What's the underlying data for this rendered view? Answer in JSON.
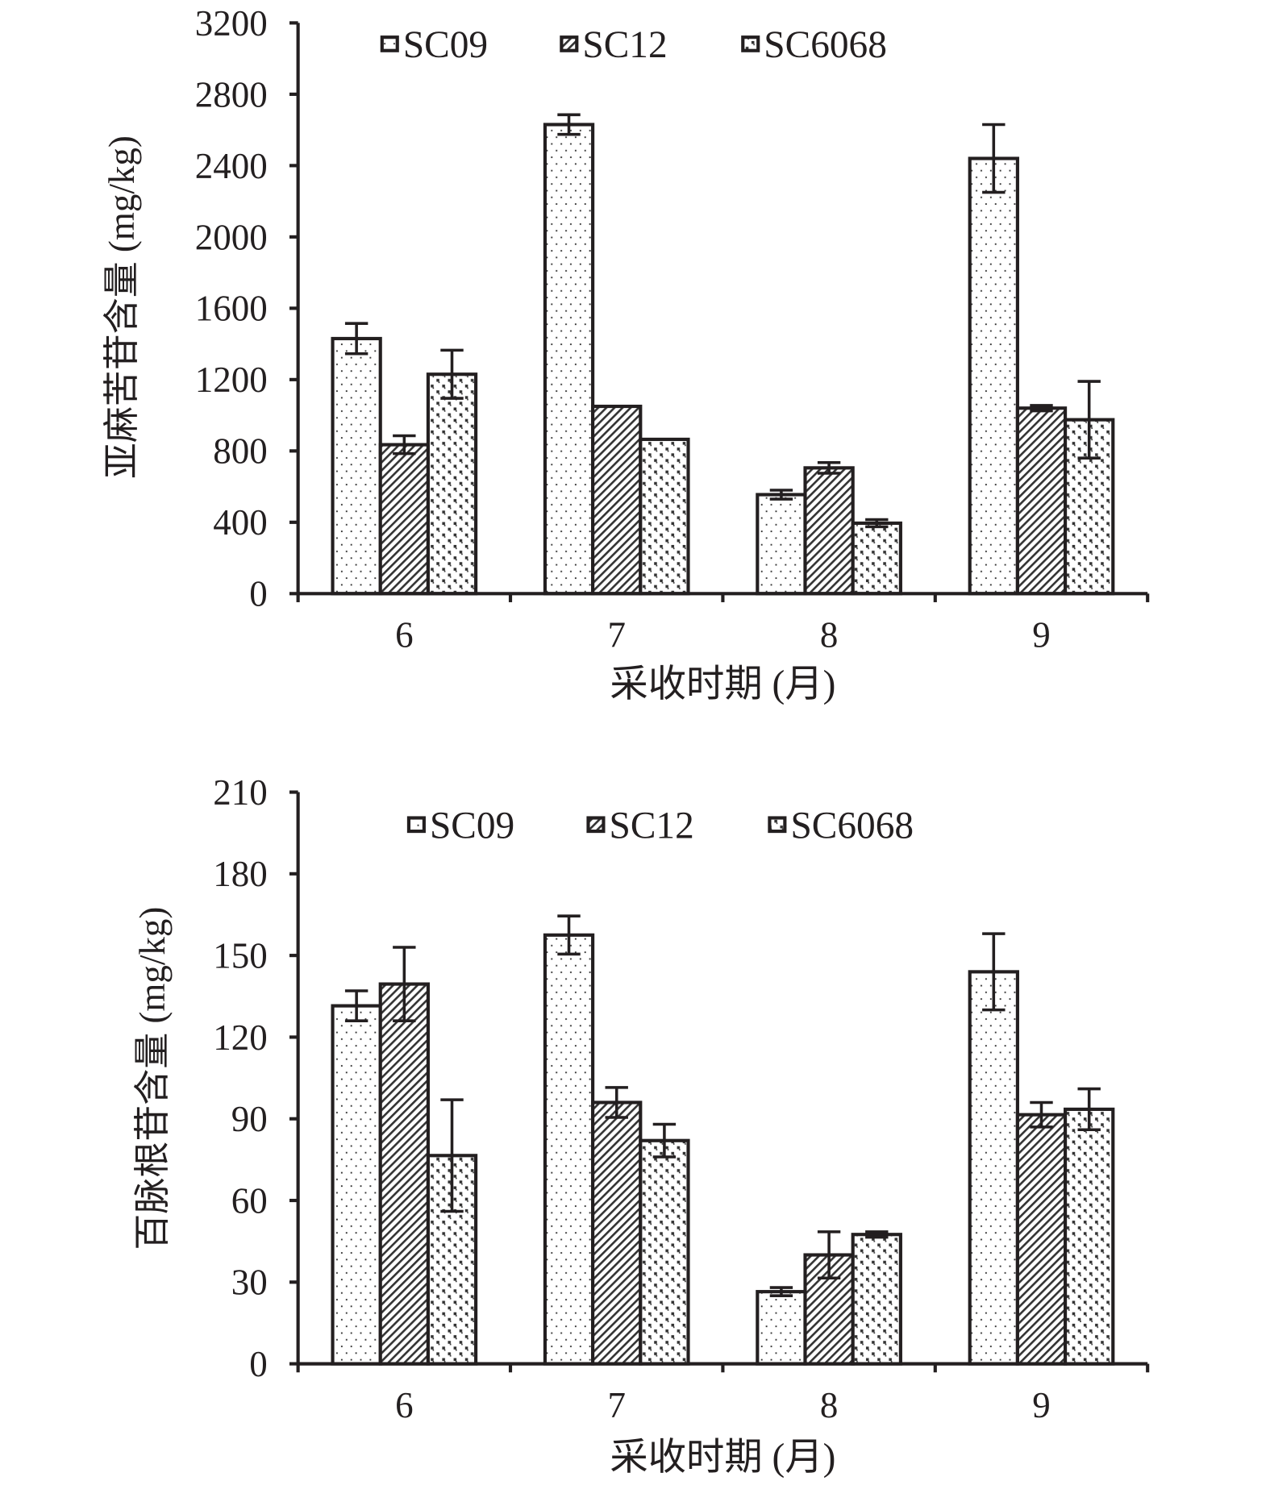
{
  "chart_data": [
    {
      "type": "bar",
      "title": "",
      "xlabel": "采收时期 (月)",
      "ylabel": "亚麻苦苷含量 (mg/kg)",
      "categories": [
        "6",
        "7",
        "8",
        "9"
      ],
      "ylim": [
        0,
        3200
      ],
      "yticks": [
        0,
        400,
        800,
        1200,
        1600,
        2000,
        2400,
        2800,
        3200
      ],
      "legend_position": "top",
      "series": [
        {
          "name": "SC09",
          "values": [
            1430,
            2630,
            555,
            2440
          ],
          "errors": [
            85,
            55,
            25,
            190
          ]
        },
        {
          "name": "SC12",
          "values": [
            835,
            1050,
            705,
            1040
          ],
          "errors": [
            50,
            0,
            30,
            15
          ]
        },
        {
          "name": "SC6068",
          "values": [
            1230,
            865,
            395,
            975
          ],
          "errors": [
            135,
            0,
            20,
            215
          ]
        }
      ]
    },
    {
      "type": "bar",
      "title": "",
      "xlabel": "采收时期 (月)",
      "ylabel": "百脉根苷含量 (mg/kg)",
      "categories": [
        "6",
        "7",
        "8",
        "9"
      ],
      "ylim": [
        0,
        210
      ],
      "yticks": [
        0,
        30,
        60,
        90,
        120,
        150,
        180,
        210
      ],
      "legend_position": "top",
      "series": [
        {
          "name": "SC09",
          "values": [
            131.5,
            157.5,
            26.5,
            144
          ],
          "errors": [
            5.5,
            7,
            1.5,
            14
          ]
        },
        {
          "name": "SC12",
          "values": [
            139.5,
            96,
            40,
            91.5
          ],
          "errors": [
            13.5,
            5.5,
            8.5,
            4.5
          ]
        },
        {
          "name": "SC6068",
          "values": [
            76.5,
            82,
            47.5,
            93.5
          ],
          "errors": [
            20.5,
            6,
            1,
            7.5
          ]
        }
      ]
    }
  ]
}
